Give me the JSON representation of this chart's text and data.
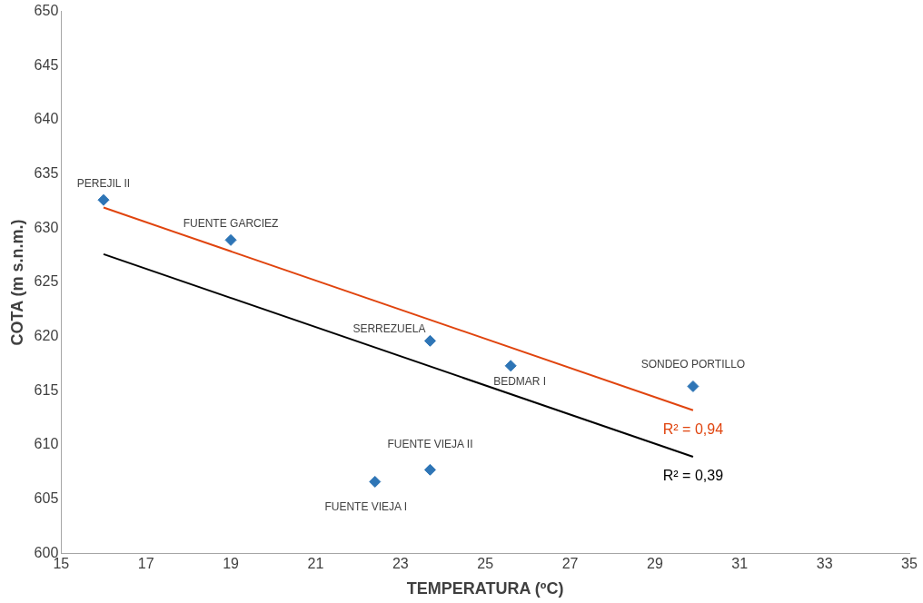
{
  "chart_data": {
    "type": "scatter",
    "xlabel": "TEMPERATURA (ºC)",
    "ylabel": "COTA (m s.n.m.)",
    "xlim": [
      15,
      35
    ],
    "xticks": [
      15,
      17,
      19,
      21,
      23,
      25,
      27,
      29,
      31,
      33,
      35
    ],
    "ylim": [
      600,
      650
    ],
    "yticks": [
      600,
      605,
      610,
      615,
      620,
      625,
      630,
      635,
      640,
      645,
      650
    ],
    "grid": false,
    "legend": false,
    "marker": "diamond",
    "series": [
      {
        "color": "#2e75b6",
        "x": [
          16.0,
          19.0,
          23.7,
          25.6,
          29.9,
          23.7,
          22.4
        ],
        "values": [
          632.6,
          628.9,
          619.6,
          617.3,
          615.4,
          607.7,
          606.6
        ]
      },
      {
        "type": "line",
        "name": "R² = 0,94",
        "color": "#e0440e",
        "marker": "none",
        "x": [
          16.0,
          29.9
        ],
        "values": [
          631.9,
          613.2
        ]
      },
      {
        "type": "line",
        "name": "R² = 0,39",
        "color": "#000000",
        "marker": "none",
        "x": [
          16.0,
          29.9
        ],
        "values": [
          627.6,
          608.9
        ]
      }
    ],
    "annotations": [
      {
        "text": "PEREJIL II",
        "x": 16.0,
        "y": 632.6
      },
      {
        "text": "FUENTE GARCIEZ",
        "x": 19.0,
        "y": 628.9
      },
      {
        "text": "SERREZUELA",
        "x": 23.7,
        "y": 619.6
      },
      {
        "text": "BEDMAR I",
        "x": 25.6,
        "y": 617.3
      },
      {
        "text": "SONDEO PORTILLO",
        "x": 29.9,
        "y": 615.4
      },
      {
        "text": "FUENTE VIEJA II",
        "x": 23.7,
        "y": 607.7
      },
      {
        "text": "FUENTE VIEJA I",
        "x": 22.4,
        "y": 606.6
      }
    ]
  }
}
